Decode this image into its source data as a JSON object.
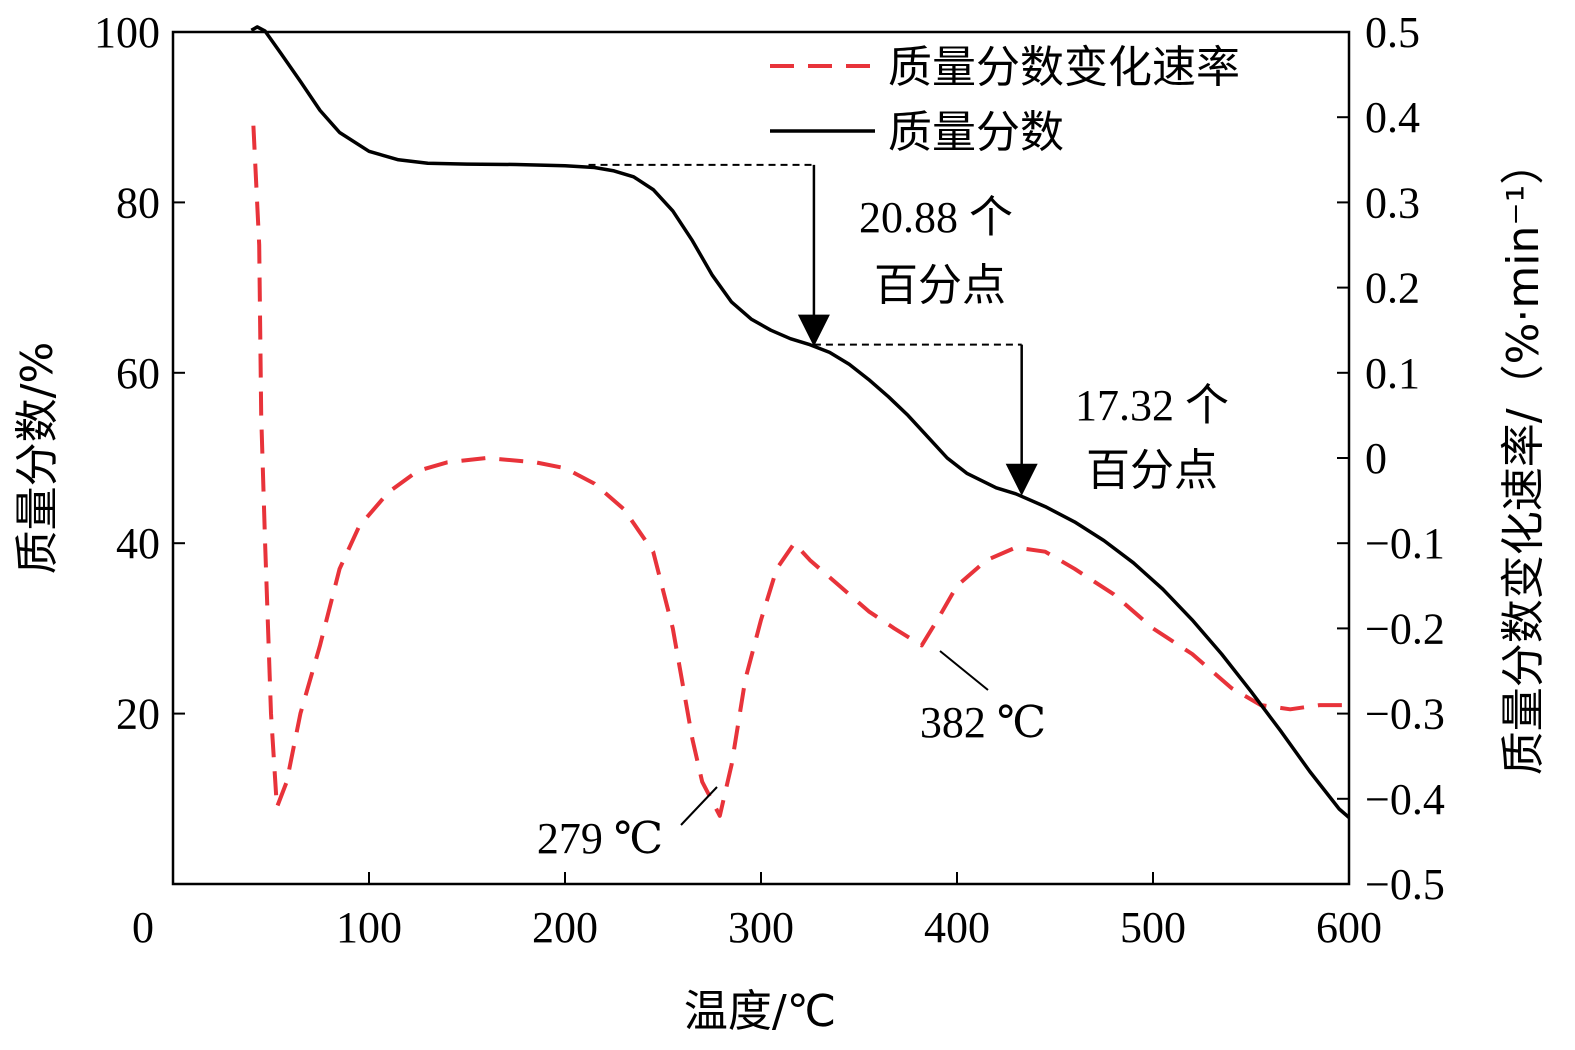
{
  "chart_data": {
    "type": "line",
    "x_axis": {
      "label": "温度/℃",
      "range": [
        0,
        600
      ],
      "ticks": [
        0,
        100,
        200,
        300,
        400,
        500,
        600
      ],
      "tick_labels": [
        "0",
        "100",
        "200",
        "300",
        "400",
        "500",
        "600"
      ]
    },
    "y_axis_left": {
      "label": "质量分数/%",
      "range": [
        0,
        100
      ],
      "ticks": [
        20,
        40,
        60,
        80,
        100
      ],
      "tick_labels": [
        "20",
        "40",
        "60",
        "80",
        "100"
      ]
    },
    "y_axis_right": {
      "label": "质量分数变化速率/（%·min⁻¹）",
      "range": [
        -0.5,
        0.5
      ],
      "ticks": [
        -0.5,
        -0.4,
        -0.3,
        -0.2,
        -0.1,
        0,
        0.1,
        0.2,
        0.3,
        0.4,
        0.5
      ],
      "tick_labels": [
        "−0.5",
        "−0.4",
        "−0.3",
        "−0.2",
        "−0.1",
        "0",
        "0.1",
        "0.2",
        "0.3",
        "0.4",
        "0.5"
      ]
    },
    "grid": false,
    "legend_position": "top-right",
    "series": [
      {
        "name": "质量分数变化速率",
        "axis": "right",
        "style": "dashed",
        "color": "#e8333a",
        "points": [
          [
            41,
            0.39
          ],
          [
            44,
            0.25
          ],
          [
            45,
            0.05
          ],
          [
            47,
            -0.1
          ],
          [
            50,
            -0.3
          ],
          [
            53,
            -0.41
          ],
          [
            58,
            -0.38
          ],
          [
            65,
            -0.3
          ],
          [
            75,
            -0.22
          ],
          [
            85,
            -0.13
          ],
          [
            95,
            -0.08
          ],
          [
            110,
            -0.04
          ],
          [
            125,
            -0.015
          ],
          [
            140,
            -0.005
          ],
          [
            160,
            0.0
          ],
          [
            185,
            -0.005
          ],
          [
            200,
            -0.012
          ],
          [
            215,
            -0.03
          ],
          [
            230,
            -0.06
          ],
          [
            245,
            -0.11
          ],
          [
            255,
            -0.2
          ],
          [
            265,
            -0.33
          ],
          [
            270,
            -0.38
          ],
          [
            279,
            -0.42
          ],
          [
            285,
            -0.36
          ],
          [
            292,
            -0.26
          ],
          [
            300,
            -0.19
          ],
          [
            308,
            -0.13
          ],
          [
            317,
            -0.1
          ],
          [
            325,
            -0.12
          ],
          [
            340,
            -0.15
          ],
          [
            355,
            -0.18
          ],
          [
            368,
            -0.2
          ],
          [
            382,
            -0.22
          ],
          [
            390,
            -0.19
          ],
          [
            400,
            -0.15
          ],
          [
            415,
            -0.12
          ],
          [
            430,
            -0.105
          ],
          [
            445,
            -0.11
          ],
          [
            460,
            -0.13
          ],
          [
            480,
            -0.16
          ],
          [
            500,
            -0.2
          ],
          [
            520,
            -0.23
          ],
          [
            540,
            -0.27
          ],
          [
            555,
            -0.29
          ],
          [
            570,
            -0.295
          ],
          [
            585,
            -0.29
          ],
          [
            600,
            -0.29
          ]
        ]
      },
      {
        "name": "质量分数",
        "axis": "left",
        "style": "solid",
        "color": "#000000",
        "points": [
          [
            40,
            100.2
          ],
          [
            43,
            100.6
          ],
          [
            47,
            100.1
          ],
          [
            55,
            97.5
          ],
          [
            65,
            94.2
          ],
          [
            75,
            90.8
          ],
          [
            85,
            88.2
          ],
          [
            100,
            86.0
          ],
          [
            115,
            85.0
          ],
          [
            130,
            84.6
          ],
          [
            150,
            84.5
          ],
          [
            175,
            84.45
          ],
          [
            200,
            84.3
          ],
          [
            215,
            84.1
          ],
          [
            225,
            83.7
          ],
          [
            235,
            83.0
          ],
          [
            245,
            81.5
          ],
          [
            255,
            79.0
          ],
          [
            265,
            75.5
          ],
          [
            275,
            71.5
          ],
          [
            285,
            68.3
          ],
          [
            295,
            66.3
          ],
          [
            305,
            65.0
          ],
          [
            315,
            64.0
          ],
          [
            325,
            63.3
          ],
          [
            335,
            62.4
          ],
          [
            345,
            61.0
          ],
          [
            355,
            59.2
          ],
          [
            365,
            57.2
          ],
          [
            375,
            55.0
          ],
          [
            385,
            52.5
          ],
          [
            395,
            50.0
          ],
          [
            405,
            48.2
          ],
          [
            420,
            46.5
          ],
          [
            430,
            45.8
          ],
          [
            445,
            44.3
          ],
          [
            460,
            42.5
          ],
          [
            475,
            40.3
          ],
          [
            490,
            37.7
          ],
          [
            505,
            34.6
          ],
          [
            520,
            31.0
          ],
          [
            535,
            27.0
          ],
          [
            550,
            22.6
          ],
          [
            565,
            18.0
          ],
          [
            580,
            13.2
          ],
          [
            595,
            8.8
          ],
          [
            600,
            7.8
          ]
        ]
      }
    ],
    "annotations": [
      {
        "text_line1": "20.88 个",
        "text_line2": "百分点",
        "drop": [
          327,
          84.4,
          63.3
        ]
      },
      {
        "text_line1": "17.32 个",
        "text_line2": "百分点",
        "drop": [
          433,
          63.3,
          45.8
        ]
      },
      {
        "text": "279 ℃",
        "temperature": 279
      },
      {
        "text": "382 ℃",
        "temperature": 382
      }
    ]
  }
}
